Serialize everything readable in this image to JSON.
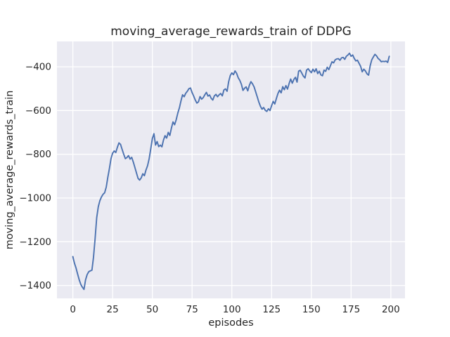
{
  "figure": {
    "title": "moving_average_rewards_train of DDPG",
    "xlabel": "episodes",
    "ylabel": "moving_average_rewards_train"
  },
  "chart_data": {
    "type": "line",
    "title": "moving_average_rewards_train of DDPG",
    "xlabel": "episodes",
    "ylabel": "moving_average_rewards_train",
    "style": "seaborn-darkgrid",
    "grid": true,
    "legend": null,
    "x_ticks": [
      0,
      25,
      50,
      75,
      100,
      125,
      150,
      175,
      200
    ],
    "y_ticks": [
      -400,
      -600,
      -800,
      -1000,
      -1200,
      -1400
    ],
    "x_tick_labels": [
      "0",
      "25",
      "50",
      "75",
      "100",
      "125",
      "150",
      "175",
      "200"
    ],
    "y_tick_labels": [
      "−400",
      "−600",
      "−800",
      "−1000",
      "−1200",
      "−1400"
    ],
    "xlim": [
      -10,
      208.9
    ],
    "ylim": [
      -1459,
      -284
    ],
    "colors": {
      "figure_bg": "#ffffff",
      "axes_bg": "#eaeaf2",
      "grid": "#ffffff",
      "text": "#262626",
      "line": "#4c72b0"
    },
    "series": [
      {
        "name": "moving_average_rewards_train",
        "color": "#4c72b0",
        "x0": 0,
        "dx": 1,
        "values": [
          -1268,
          -1298,
          -1320,
          -1348,
          -1374,
          -1395,
          -1408,
          -1418,
          -1374,
          -1350,
          -1337,
          -1333,
          -1330,
          -1270,
          -1185,
          -1090,
          -1040,
          -1012,
          -995,
          -983,
          -976,
          -950,
          -905,
          -865,
          -820,
          -795,
          -785,
          -792,
          -768,
          -748,
          -755,
          -778,
          -800,
          -820,
          -815,
          -806,
          -822,
          -814,
          -835,
          -860,
          -885,
          -910,
          -918,
          -908,
          -889,
          -898,
          -872,
          -852,
          -820,
          -775,
          -728,
          -706,
          -758,
          -742,
          -765,
          -758,
          -766,
          -735,
          -715,
          -726,
          -700,
          -714,
          -680,
          -652,
          -665,
          -642,
          -612,
          -588,
          -556,
          -528,
          -537,
          -521,
          -512,
          -500,
          -497,
          -518,
          -534,
          -552,
          -566,
          -560,
          -536,
          -548,
          -541,
          -528,
          -517,
          -534,
          -529,
          -544,
          -552,
          -533,
          -526,
          -537,
          -528,
          -522,
          -533,
          -506,
          -501,
          -512,
          -468,
          -440,
          -428,
          -436,
          -419,
          -430,
          -450,
          -462,
          -480,
          -508,
          -498,
          -492,
          -510,
          -485,
          -468,
          -478,
          -492,
          -515,
          -538,
          -562,
          -581,
          -594,
          -586,
          -599,
          -604,
          -592,
          -600,
          -578,
          -558,
          -570,
          -545,
          -522,
          -507,
          -519,
          -491,
          -505,
          -486,
          -502,
          -477,
          -456,
          -475,
          -458,
          -448,
          -470,
          -420,
          -416,
          -429,
          -443,
          -451,
          -415,
          -409,
          -419,
          -427,
          -411,
          -423,
          -409,
          -431,
          -420,
          -437,
          -441,
          -415,
          -421,
          -402,
          -413,
          -395,
          -377,
          -382,
          -368,
          -364,
          -363,
          -370,
          -359,
          -357,
          -366,
          -352,
          -346,
          -338,
          -352,
          -346,
          -362,
          -373,
          -370,
          -384,
          -398,
          -423,
          -411,
          -419,
          -432,
          -438,
          -395,
          -368,
          -355,
          -343,
          -350,
          -362,
          -368,
          -377,
          -375,
          -376,
          -374,
          -380,
          -352
        ]
      }
    ]
  }
}
